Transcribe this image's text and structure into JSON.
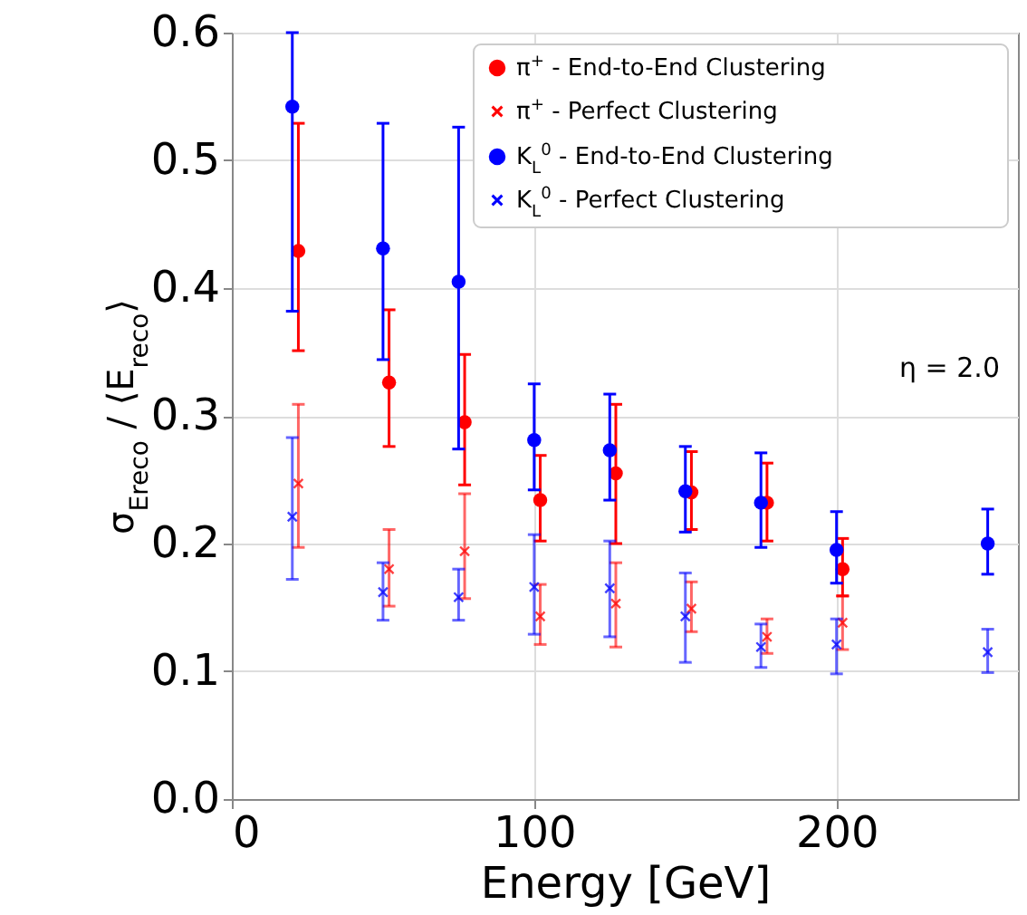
{
  "chart_data": {
    "type": "scatter",
    "xlabel": "Energy [GeV]",
    "ylabel": "σ$_{Ereco}$ / ⟨E$_{reco}$⟩",
    "xlim": [
      0,
      260
    ],
    "xticks": [
      0,
      100,
      200
    ],
    "ylim": [
      0,
      0.6
    ],
    "yticks": [
      {
        "value": 0,
        "label": "0.0"
      },
      0.1,
      0.2,
      0.3,
      0.4,
      0.5,
      0.6
    ],
    "grid": true,
    "legend": "top right",
    "annotations": [
      "η = 2.0"
    ],
    "series": [
      {
        "name": "π$^{+}$ - End-to-End Clustering",
        "color": "#ff0000",
        "marker": "circle",
        "x": [
          22,
          52,
          77,
          102,
          127,
          152,
          177,
          202
        ],
        "values": [
          0.429,
          0.326,
          0.295,
          0.234,
          0.255,
          0.24,
          0.232,
          0.18
        ],
        "errors": [
          [
            0.351,
            0.529
          ],
          [
            0.276,
            0.383
          ],
          [
            0.246,
            0.348
          ],
          [
            0.202,
            0.269
          ],
          [
            0.2,
            0.309
          ],
          [
            0.211,
            0.272
          ],
          [
            0.202,
            0.263
          ],
          [
            0.159,
            0.204
          ]
        ]
      },
      {
        "name": "π$^{+}$ - Perfect Clustering",
        "color": "#ff0000",
        "marker": "cross",
        "x": [
          22,
          52,
          77,
          102,
          127,
          152,
          177,
          202
        ],
        "values": [
          0.247,
          0.18,
          0.194,
          0.143,
          0.153,
          0.149,
          0.127,
          0.138
        ],
        "errors": [
          [
            0.197,
            0.309
          ],
          [
            0.151,
            0.211
          ],
          [
            0.157,
            0.239
          ],
          [
            0.121,
            0.168
          ],
          [
            0.119,
            0.185
          ],
          [
            0.131,
            0.17
          ],
          [
            0.114,
            0.141
          ],
          [
            0.117,
            0.159
          ]
        ]
      },
      {
        "name": "K$_{L}$$^{0}$ - End-to-End Clustering",
        "color": "#0000ff",
        "marker": "circle",
        "x": [
          20,
          50,
          75,
          100,
          125,
          150,
          175,
          200,
          250
        ],
        "values": [
          0.542,
          0.431,
          0.405,
          0.281,
          0.273,
          0.241,
          0.232,
          0.195,
          0.2
        ],
        "errors": [
          [
            0.382,
            0.6
          ],
          [
            0.344,
            0.529
          ],
          [
            0.274,
            0.526
          ],
          [
            0.242,
            0.325
          ],
          [
            0.234,
            0.317
          ],
          [
            0.209,
            0.276
          ],
          [
            0.197,
            0.271
          ],
          [
            0.169,
            0.225
          ],
          [
            0.176,
            0.227
          ]
        ]
      },
      {
        "name": "K$_{L}$$^{0}$ - Perfect Clustering",
        "color": "#0000ff",
        "marker": "cross",
        "x": [
          20,
          50,
          75,
          100,
          125,
          150,
          175,
          200,
          250
        ],
        "values": [
          0.221,
          0.162,
          0.158,
          0.166,
          0.165,
          0.143,
          0.119,
          0.121,
          0.115
        ],
        "errors": [
          [
            0.172,
            0.283
          ],
          [
            0.14,
            0.185
          ],
          [
            0.14,
            0.18
          ],
          [
            0.129,
            0.207
          ],
          [
            0.127,
            0.202
          ],
          [
            0.107,
            0.177
          ],
          [
            0.103,
            0.137
          ],
          [
            0.098,
            0.141
          ],
          [
            0.099,
            0.133
          ]
        ]
      }
    ]
  }
}
